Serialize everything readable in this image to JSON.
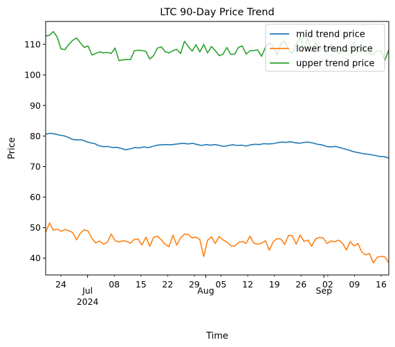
{
  "chart_data": {
    "type": "line",
    "title": "LTC 90-Day Price Trend",
    "xlabel": "Time",
    "ylabel": "Price",
    "x_start": "2024-06-20",
    "x_end": "2024-09-18",
    "ylim": [
      34.5,
      117.5
    ],
    "yticks": [
      40,
      50,
      60,
      70,
      80,
      90,
      100,
      110
    ],
    "xticks": [
      {
        "date": "2024-06-24",
        "day": "24",
        "month": "",
        "year": ""
      },
      {
        "date": "2024-07-01",
        "day": "",
        "month": "Jul",
        "year": "2024"
      },
      {
        "date": "2024-07-08",
        "day": "08",
        "month": "",
        "year": ""
      },
      {
        "date": "2024-07-15",
        "day": "15",
        "month": "",
        "year": ""
      },
      {
        "date": "2024-07-22",
        "day": "22",
        "month": "",
        "year": ""
      },
      {
        "date": "2024-07-29",
        "day": "29",
        "month": "",
        "year": ""
      },
      {
        "date": "2024-08-01",
        "day": "",
        "month": "Aug",
        "year": ""
      },
      {
        "date": "2024-08-05",
        "day": "05",
        "month": "",
        "year": ""
      },
      {
        "date": "2024-08-12",
        "day": "12",
        "month": "",
        "year": ""
      },
      {
        "date": "2024-08-19",
        "day": "19",
        "month": "",
        "year": ""
      },
      {
        "date": "2024-08-26",
        "day": "26",
        "month": "",
        "year": ""
      },
      {
        "date": "2024-09-01",
        "day": "",
        "month": "Sep",
        "year": ""
      },
      {
        "date": "2024-09-02",
        "day": "02",
        "month": "",
        "year": ""
      },
      {
        "date": "2024-09-09",
        "day": "09",
        "month": "",
        "year": ""
      },
      {
        "date": "2024-09-16",
        "day": "16",
        "month": "",
        "year": ""
      }
    ],
    "legend_position": "top-right",
    "grid": false,
    "series": [
      {
        "name": "mid trend price",
        "color": "#1f77b4",
        "values": [
          80.6,
          80.9,
          80.7,
          80.3,
          80.1,
          79.6,
          78.9,
          78.7,
          78.8,
          78.2,
          77.8,
          77.5,
          76.8,
          76.5,
          76.6,
          76.2,
          76.3,
          75.9,
          75.5,
          75.8,
          76.2,
          76.1,
          76.4,
          76.2,
          76.6,
          77.0,
          77.1,
          77.2,
          77.1,
          77.3,
          77.5,
          77.6,
          77.4,
          77.6,
          77.2,
          76.9,
          77.2,
          77.0,
          77.2,
          76.9,
          76.6,
          76.9,
          77.1,
          76.9,
          77.0,
          76.7,
          77.1,
          77.3,
          77.2,
          77.5,
          77.4,
          77.5,
          77.8,
          78.0,
          77.9,
          78.1,
          77.8,
          77.6,
          77.9,
          78.0,
          77.7,
          77.3,
          77.1,
          76.6,
          76.4,
          76.6,
          76.2,
          75.8,
          75.4,
          74.9,
          74.6,
          74.3,
          74.1,
          73.9,
          73.6,
          73.3,
          73.2,
          72.8
        ]
      },
      {
        "name": "lower trend price",
        "color": "#ff7f0e",
        "values": [
          48.5,
          51.5,
          49.2,
          49.5,
          48.8,
          49.4,
          49.0,
          48.4,
          46.0,
          48.2,
          49.3,
          48.9,
          46.5,
          45.0,
          45.6,
          44.6,
          45.2,
          47.9,
          45.8,
          45.3,
          45.7,
          45.5,
          44.9,
          46.2,
          46.2,
          44.3,
          46.9,
          43.9,
          46.8,
          47.2,
          46.0,
          44.5,
          43.8,
          47.5,
          44.3,
          46.6,
          47.9,
          47.8,
          46.6,
          46.9,
          46.1,
          40.5,
          45.9,
          47.0,
          44.8,
          47.1,
          46.0,
          45.3,
          44.1,
          43.9,
          45.1,
          45.5,
          44.8,
          47.2,
          44.9,
          44.6,
          44.9,
          45.7,
          42.6,
          45.3,
          46.4,
          46.3,
          44.5,
          47.5,
          47.3,
          44.6,
          47.6,
          45.5,
          45.9,
          43.9,
          46.3,
          46.8,
          46.6,
          44.8,
          45.6,
          45.4,
          45.9,
          44.9,
          42.7,
          45.4,
          44.0,
          44.8,
          42.0,
          41.1,
          41.5,
          38.5,
          40.3,
          40.6,
          40.4,
          38.5
        ]
      },
      {
        "name": "upper trend price",
        "color": "#2ca02c",
        "values": [
          112.7,
          113.0,
          114.2,
          112.4,
          108.5,
          108.3,
          110.0,
          111.3,
          112.1,
          110.5,
          109.0,
          109.5,
          106.5,
          107.0,
          107.6,
          107.2,
          107.4,
          107.0,
          108.8,
          104.7,
          104.9,
          105.1,
          105.0,
          107.9,
          108.1,
          108.0,
          107.7,
          105.2,
          106.3,
          108.8,
          109.2,
          107.6,
          107.2,
          107.9,
          108.4,
          107.0,
          111.0,
          109.3,
          107.8,
          109.9,
          107.5,
          110.0,
          107.2,
          109.3,
          108.0,
          106.3,
          106.8,
          109.0,
          106.7,
          106.8,
          109.0,
          109.5,
          106.8,
          107.9,
          108.0,
          108.2,
          106.1,
          109.0,
          110.5,
          109.5,
          106.5,
          110.3,
          111.1,
          108.0,
          107.0,
          110.2,
          112.1,
          108.4,
          112.2,
          107.4,
          110.6,
          108.0,
          109.0,
          107.4,
          110.0,
          108.2,
          106.9,
          108.0,
          107.7,
          109.2,
          110.8,
          107.4,
          109.0,
          108.0,
          107.0,
          106.7,
          108.0,
          107.6,
          104.8,
          108.2
        ]
      }
    ]
  }
}
